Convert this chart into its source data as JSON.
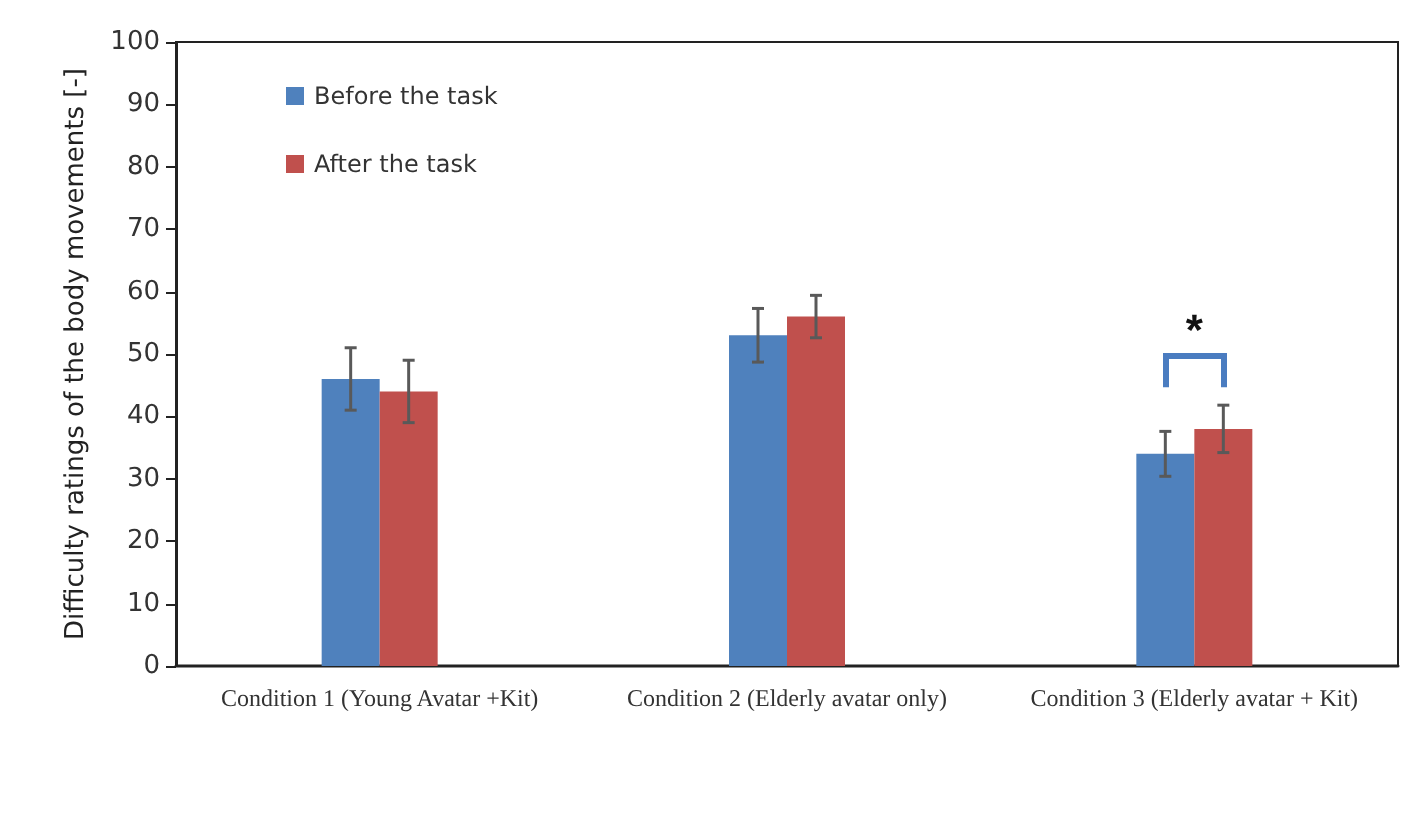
{
  "chart_data": {
    "type": "bar",
    "ylabel": "Difficulty ratings of the body movements [-]",
    "categories": [
      "Condition 1 (Young Avatar +Kit)",
      "Condition 2 (Elderly avatar only)",
      "Condition 3 (Elderly avatar + Kit)"
    ],
    "series": [
      {
        "name": "Before the task",
        "color": "#4f81bd",
        "values": [
          46,
          53,
          34
        ],
        "errors": [
          5,
          4.3,
          3.6
        ]
      },
      {
        "name": "After the task",
        "color": "#c0504d",
        "values": [
          44,
          56,
          38
        ],
        "errors": [
          5,
          3.4,
          3.8
        ]
      }
    ],
    "ylim": [
      0,
      100
    ],
    "yticks": [
      0,
      10,
      20,
      30,
      40,
      50,
      60,
      70,
      80,
      90,
      100
    ],
    "grid": false,
    "legend": "top left",
    "annotations": [
      "*"
    ]
  }
}
